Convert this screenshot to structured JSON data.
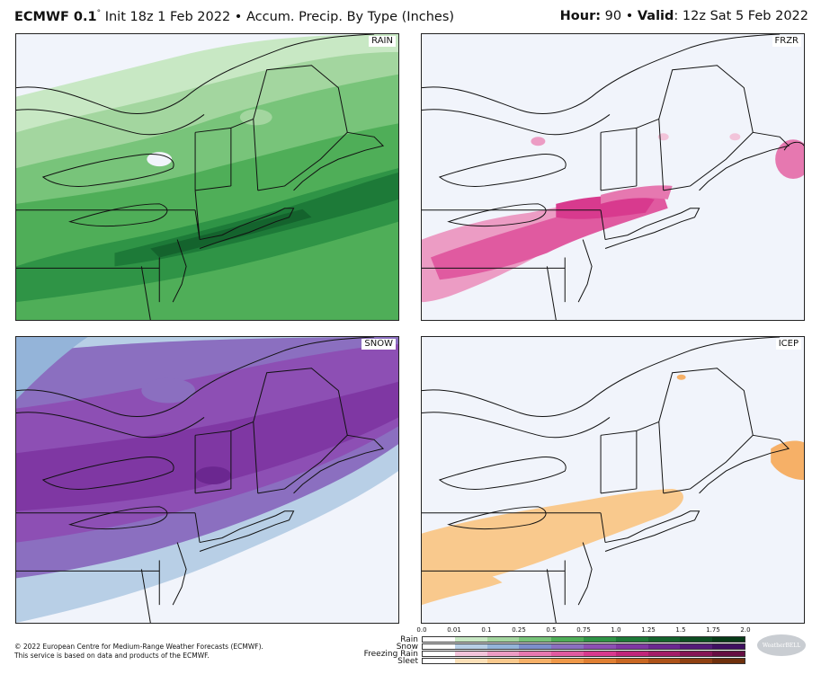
{
  "header": {
    "model": "ECMWF 0.1",
    "degree": "°",
    "init": " Init 18z 1 Feb 2022 • Accum. Precip. By Type (Inches)",
    "hour_label": "Hour:",
    "hour_value": " 90 • ",
    "valid_label": "Valid",
    "valid_value": ": 12z Sat 5 Feb 2022"
  },
  "panels": {
    "rain": "RAIN",
    "frzr": "FRZR",
    "snow": "SNOW",
    "icep": "ICEP"
  },
  "legend": {
    "ticks": [
      "0.0",
      "0.01",
      "0.1",
      "0.25",
      "0.5",
      "0.75",
      "1.0",
      "1.25",
      "1.5",
      "1.75",
      "2.0"
    ],
    "rows": [
      {
        "label": "Rain",
        "colors": [
          "#ffffff",
          "#c8e8c4",
          "#a3d69f",
          "#78c47a",
          "#4fae58",
          "#2f9446",
          "#1d7a38",
          "#14632d",
          "#0d4e22",
          "#073a17"
        ]
      },
      {
        "label": "Snow",
        "colors": [
          "#ffffff",
          "#b8cfe6",
          "#94b4d9",
          "#7d8fcb",
          "#8b6fc0",
          "#8d4fb4",
          "#7f37a3",
          "#6b2790",
          "#541a78",
          "#3f1060"
        ]
      },
      {
        "label": "Freezing Rain",
        "colors": [
          "#ffffff",
          "#f2c4da",
          "#ec9cc4",
          "#e678b0",
          "#e05aa0",
          "#d83a8e",
          "#c0267a",
          "#a31d68",
          "#851555",
          "#650f42"
        ]
      },
      {
        "label": "Sleet",
        "colors": [
          "#ffffff",
          "#fbe0b8",
          "#f9c98d",
          "#f6b067",
          "#ef9848",
          "#e07f32",
          "#c96722",
          "#ad5218",
          "#8f4012",
          "#6f300c"
        ]
      }
    ]
  },
  "footer": {
    "line1": "© 2022 European Centre for Medium-Range Weather Forecasts (ECMWF).",
    "line2": "This service is based on data and products of the ECMWF."
  },
  "logo": "WeatherBELL"
}
